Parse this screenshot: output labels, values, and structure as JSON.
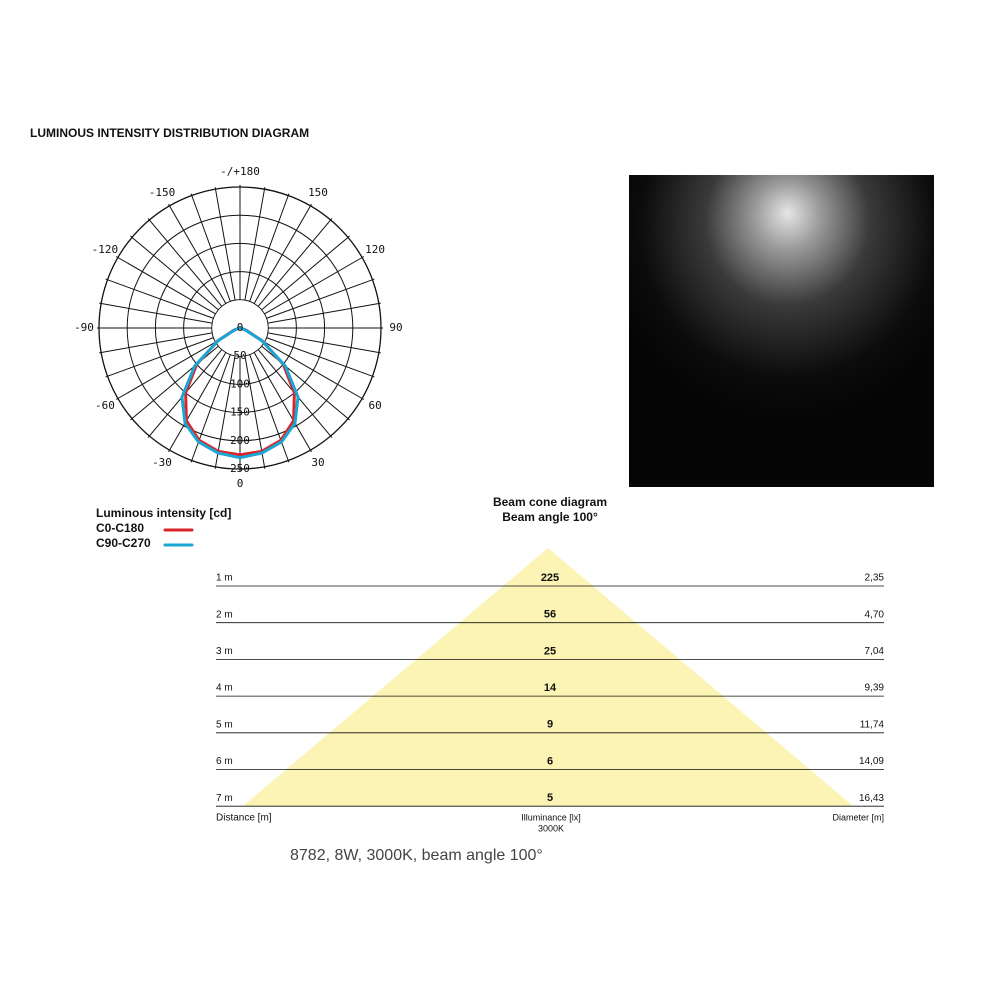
{
  "title": "LUMINOUS INTENSITY DISTRIBUTION DIAGRAM",
  "polar": {
    "angle_labels": [
      {
        "value": 180,
        "label": "-/+180"
      },
      -150,
      -120,
      -90,
      -60,
      -30,
      0,
      30,
      60,
      90,
      120,
      150
    ],
    "radial_ticks": [
      0,
      50,
      100,
      150,
      200,
      250
    ],
    "angles": [
      -90,
      -80,
      -70,
      -60,
      -50,
      -40,
      -30,
      -20,
      -10,
      0,
      10,
      20,
      30,
      40,
      50,
      60,
      70,
      80,
      90
    ],
    "legend_title": "Luminous intensity [cd]",
    "series": [
      {
        "name": "C0-C180",
        "color": "#d9262b",
        "values": [
          0,
          2,
          12,
          45,
          100,
          150,
          190,
          212,
          222,
          225,
          222,
          212,
          190,
          150,
          100,
          45,
          12,
          2,
          0
        ]
      },
      {
        "name": "C90-C270",
        "color": "#1aa6d4",
        "values": [
          0,
          2,
          10,
          45,
          105,
          160,
          195,
          215,
          225,
          230,
          225,
          215,
          195,
          160,
          105,
          45,
          10,
          2,
          0
        ]
      }
    ]
  },
  "beam": {
    "title": "Beam cone diagram",
    "subtitle": "Beam angle 100°",
    "rows": [
      [
        "1 m",
        225,
        "2,35"
      ],
      [
        "2 m",
        56,
        "4,70"
      ],
      [
        "3 m",
        25,
        "7,04"
      ],
      [
        "4 m",
        14,
        "9,39"
      ],
      [
        "5 m",
        9,
        "11,74"
      ],
      [
        "6 m",
        6,
        "14,09"
      ],
      [
        "7 m",
        5,
        "16,43"
      ]
    ],
    "columns": [
      "Distance [m]",
      "Illuminance [lx]",
      "Diameter [m]"
    ],
    "cct": "3000K"
  },
  "caption": "8782, 8W, 3000K, beam angle 100°"
}
